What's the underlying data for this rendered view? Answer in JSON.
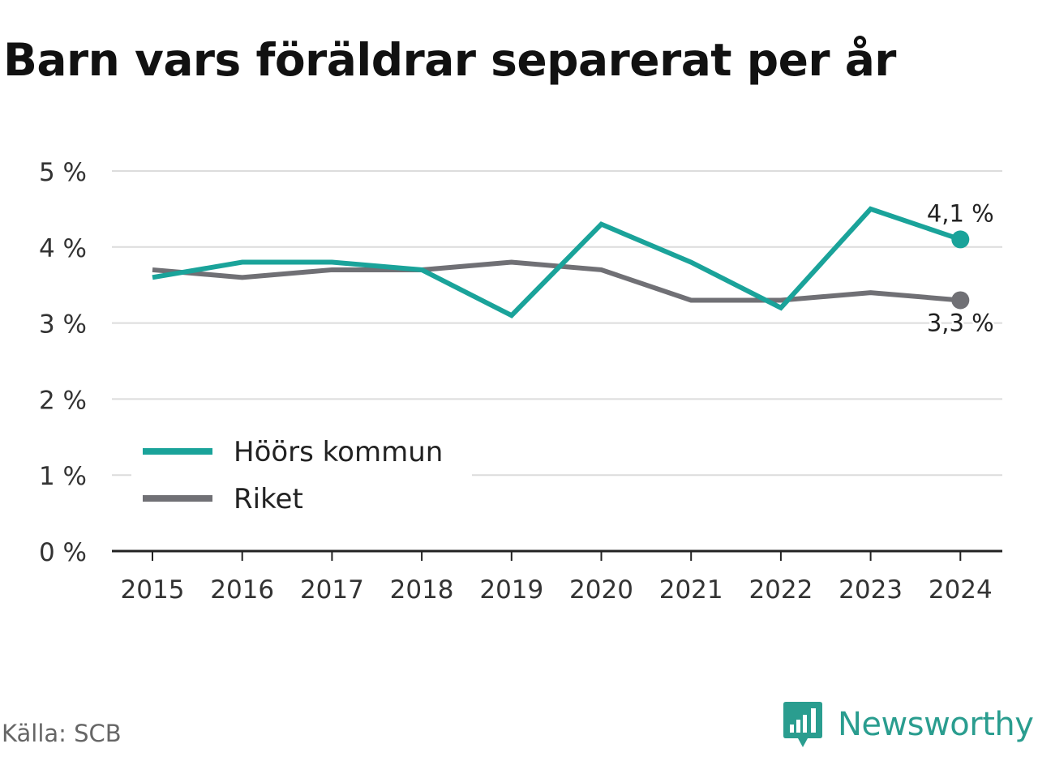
{
  "title": "Barn vars föräldrar separerat per år",
  "source": "Källa: SCB",
  "brand": {
    "name": "Newsworthy",
    "icon": "newsworthy-logo-icon",
    "color": "#2a9d8f"
  },
  "chart_data": {
    "type": "line",
    "title": "Barn vars föräldrar separerat per år",
    "xlabel": "",
    "ylabel": "",
    "categories": [
      "2015",
      "2016",
      "2017",
      "2018",
      "2019",
      "2020",
      "2021",
      "2022",
      "2023",
      "2024"
    ],
    "y_ticks": [
      "0 %",
      "1 %",
      "2 %",
      "3 %",
      "4 %",
      "5 %"
    ],
    "ylim": [
      0,
      5
    ],
    "grid": true,
    "legend_position": "bottom-left",
    "series": [
      {
        "name": "Höörs kommun",
        "color": "#1aa39a",
        "values": [
          3.6,
          3.8,
          3.8,
          3.7,
          3.1,
          4.3,
          3.8,
          3.2,
          4.5,
          4.1
        ],
        "end_label": "4,1 %"
      },
      {
        "name": "Riket",
        "color": "#707075",
        "values": [
          3.7,
          3.6,
          3.7,
          3.7,
          3.8,
          3.7,
          3.3,
          3.3,
          3.4,
          3.3
        ],
        "end_label": "3,3 %"
      }
    ]
  }
}
